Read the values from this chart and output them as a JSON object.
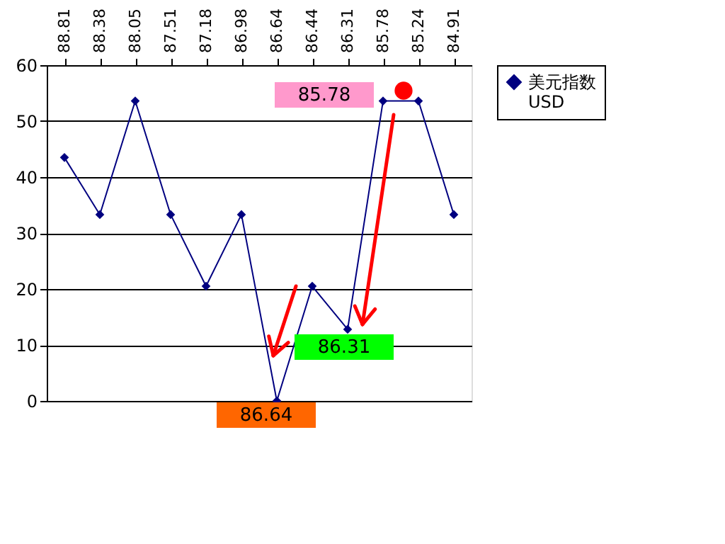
{
  "chart_data": {
    "type": "line",
    "categories": [
      "88.81",
      "88.38",
      "88.05",
      "87.51",
      "87.18",
      "86.98",
      "86.64",
      "86.44",
      "86.31",
      "85.78",
      "85.24",
      "84.91"
    ],
    "series": [
      {
        "name": "美元指数 USD",
        "color": "#000080",
        "values": [
          43.5,
          33.3,
          53.6,
          33.3,
          20.5,
          33.3,
          0,
          20.5,
          12.8,
          53.6,
          53.6,
          33.3
        ]
      }
    ],
    "ylim": [
      0,
      60
    ],
    "yticks": [
      0,
      10,
      20,
      30,
      40,
      50,
      60
    ],
    "grid": "y",
    "legend": "right",
    "marker": "diamond",
    "line_style": "solid",
    "annotations": [
      "85.78",
      "86.31",
      "86.64"
    ]
  }
}
